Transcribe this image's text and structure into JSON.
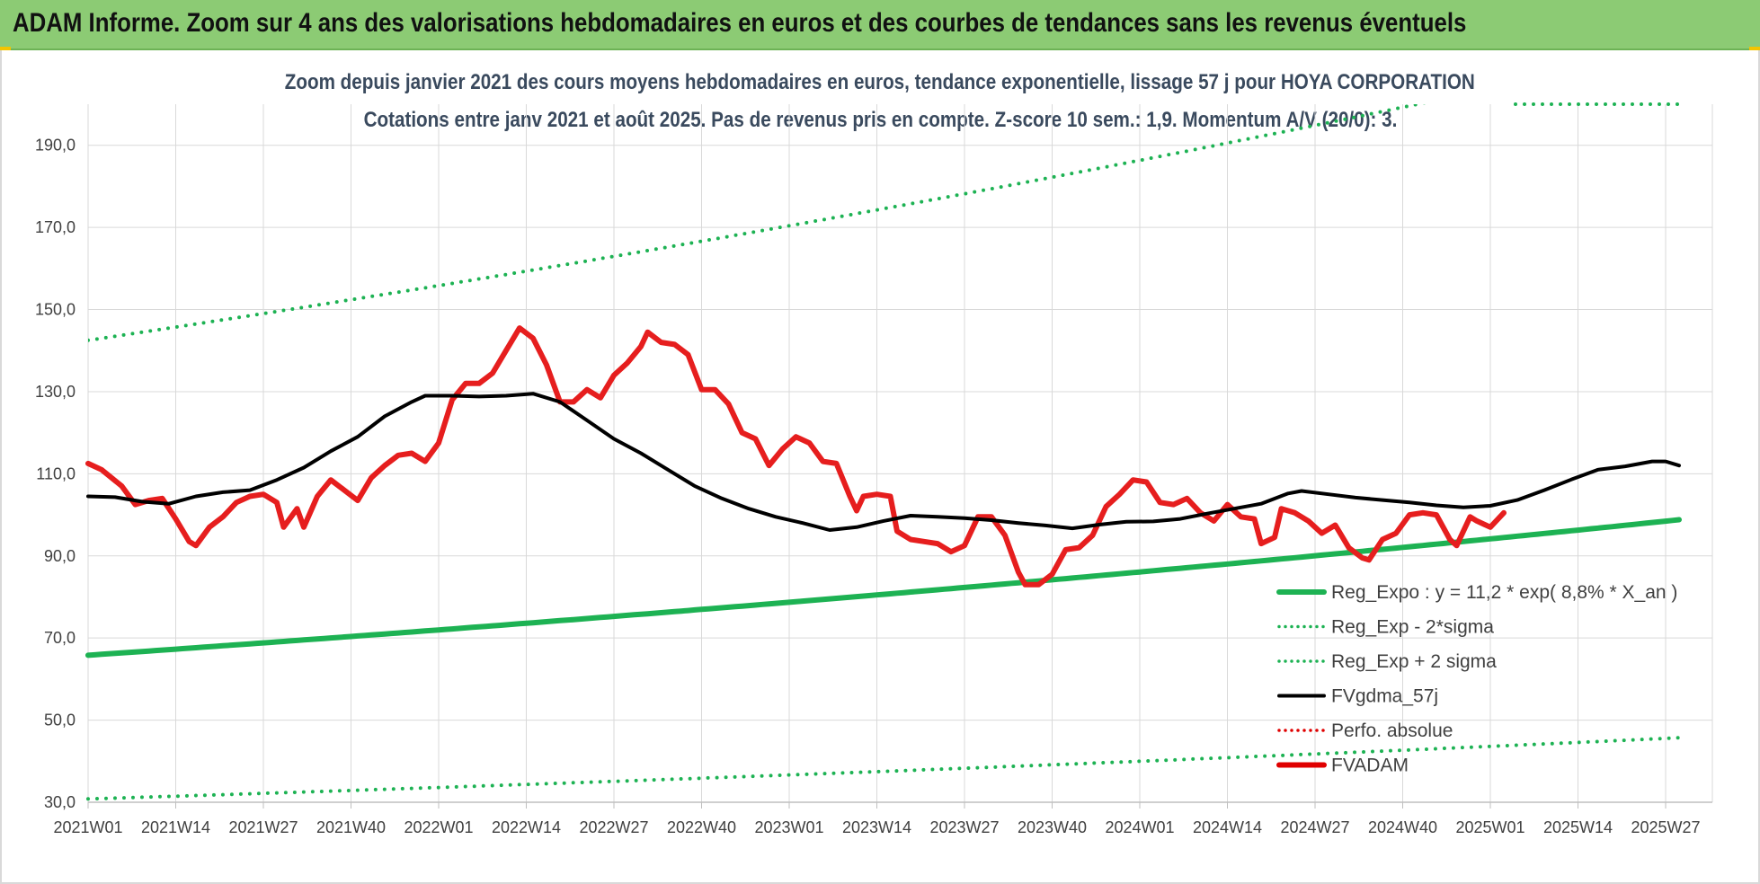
{
  "banner": {
    "title": "ADAM Informe. Zoom sur 4 ans des valorisations hebdomadaires en euros et des courbes de tendances sans les revenus éventuels"
  },
  "chart_data": {
    "type": "line",
    "title": "Zoom depuis janvier 2021 des cours moyens hebdomadaires en euros, tendance exponentielle, lissage 57 j pour HOYA CORPORATION",
    "subtitle": "Cotations entre janv 2021 et août 2025.  Pas de revenus pris en compte. Z-score 10 sem.: 1,9. Momentum A/V (20/0): 3.",
    "xlabel": "",
    "ylabel": "",
    "ylim": [
      30,
      200
    ],
    "yticks": [
      "30,0",
      "50,0",
      "70,0",
      "90,0",
      "110,0",
      "130,0",
      "150,0",
      "170,0",
      "190,0"
    ],
    "ytick_values": [
      30,
      50,
      70,
      90,
      110,
      130,
      150,
      170,
      190
    ],
    "xticks": [
      "2021W01",
      "2021W14",
      "2021W27",
      "2021W40",
      "2022W01",
      "2022W14",
      "2022W27",
      "2022W40",
      "2023W01",
      "2023W14",
      "2023W27",
      "2023W40",
      "2024W01",
      "2024W14",
      "2024W27",
      "2024W40",
      "2025W01",
      "2025W14",
      "2025W27"
    ],
    "week_range": [
      0,
      236
    ],
    "grid": true,
    "legend_position": "bottom-right",
    "legend": [
      {
        "name": "Reg_Expo : y = 11,2 * exp( 8,8% *  X_an )",
        "color": "#1db253",
        "style": "solid"
      },
      {
        "name": "Reg_Exp - 2*sigma",
        "color": "#1db253",
        "style": "dotted"
      },
      {
        "name": "Reg_Exp + 2 sigma",
        "color": "#1db253",
        "style": "dotted"
      },
      {
        "name": "FVgdma_57j",
        "color": "#000000",
        "style": "solid"
      },
      {
        "name": "Perfo. absolue",
        "color": "#e00000",
        "style": "dotted"
      },
      {
        "name": "FVADAM",
        "color": "#e00000",
        "style": "solid"
      }
    ],
    "series": [
      {
        "name": "Reg_Expo : y = 11,2 * exp( 8,8% *  X_an )",
        "type": "exponential",
        "start": [
          0,
          65.8
        ],
        "end": [
          236,
          98.8
        ]
      },
      {
        "name": "Reg_Exp - 2*sigma",
        "type": "exponential",
        "start": [
          0,
          30.8
        ],
        "end": [
          236,
          45.7
        ]
      },
      {
        "name": "Reg_Exp + 2 sigma",
        "type": "exponential",
        "start": [
          0,
          142.5
        ],
        "end": [
          236,
          213.8
        ]
      },
      {
        "name": "FVgdma_57j",
        "points": [
          [
            0,
            104.5
          ],
          [
            4,
            104.3
          ],
          [
            8,
            103.2
          ],
          [
            12,
            102.7
          ],
          [
            16,
            104.5
          ],
          [
            20,
            105.5
          ],
          [
            24,
            106.0
          ],
          [
            28,
            108.5
          ],
          [
            32,
            111.5
          ],
          [
            36,
            115.5
          ],
          [
            40,
            119.0
          ],
          [
            44,
            124.0
          ],
          [
            48,
            127.5
          ],
          [
            50,
            129.0
          ],
          [
            54,
            129.0
          ],
          [
            58,
            128.8
          ],
          [
            62,
            129.0
          ],
          [
            66,
            129.5
          ],
          [
            70,
            127.5
          ],
          [
            74,
            123.0
          ],
          [
            78,
            118.5
          ],
          [
            82,
            115.0
          ],
          [
            86,
            111.0
          ],
          [
            90,
            107.0
          ],
          [
            94,
            104.0
          ],
          [
            98,
            101.5
          ],
          [
            102,
            99.5
          ],
          [
            106,
            98.0
          ],
          [
            110,
            96.3
          ],
          [
            114,
            97.0
          ],
          [
            118,
            98.5
          ],
          [
            122,
            99.8
          ],
          [
            126,
            99.5
          ],
          [
            130,
            99.2
          ],
          [
            134,
            98.7
          ],
          [
            138,
            98.0
          ],
          [
            142,
            97.4
          ],
          [
            146,
            96.7
          ],
          [
            150,
            97.6
          ],
          [
            154,
            98.3
          ],
          [
            158,
            98.4
          ],
          [
            162,
            99.0
          ],
          [
            166,
            100.3
          ],
          [
            170,
            101.5
          ],
          [
            174,
            102.7
          ],
          [
            178,
            105.2
          ],
          [
            180,
            105.8
          ],
          [
            184,
            105.0
          ],
          [
            188,
            104.2
          ],
          [
            192,
            103.6
          ],
          [
            196,
            103.0
          ],
          [
            200,
            102.3
          ],
          [
            204,
            101.8
          ],
          [
            208,
            102.2
          ],
          [
            212,
            103.6
          ],
          [
            216,
            106.0
          ],
          [
            220,
            108.6
          ],
          [
            224,
            111.0
          ],
          [
            228,
            111.8
          ],
          [
            232,
            113.0
          ],
          [
            234,
            113.0
          ],
          [
            236,
            112.0
          ]
        ]
      },
      {
        "name": "FVADAM",
        "points": [
          [
            0,
            112.5
          ],
          [
            2,
            111.0
          ],
          [
            5,
            107.0
          ],
          [
            7,
            102.5
          ],
          [
            9,
            103.5
          ],
          [
            11,
            104.0
          ],
          [
            13,
            99.0
          ],
          [
            15,
            93.5
          ],
          [
            16,
            92.5
          ],
          [
            18,
            97.0
          ],
          [
            20,
            99.5
          ],
          [
            22,
            103.0
          ],
          [
            24,
            104.5
          ],
          [
            26,
            105.0
          ],
          [
            28,
            103.0
          ],
          [
            29,
            97.0
          ],
          [
            31,
            101.5
          ],
          [
            32,
            97.0
          ],
          [
            34,
            104.5
          ],
          [
            36,
            108.5
          ],
          [
            38,
            106.0
          ],
          [
            40,
            103.5
          ],
          [
            42,
            109.0
          ],
          [
            44,
            112.0
          ],
          [
            46,
            114.5
          ],
          [
            48,
            115.0
          ],
          [
            50,
            113.0
          ],
          [
            52,
            117.5
          ],
          [
            54,
            128.0
          ],
          [
            56,
            132.0
          ],
          [
            58,
            132.0
          ],
          [
            60,
            134.5
          ],
          [
            62,
            140.0
          ],
          [
            64,
            145.5
          ],
          [
            66,
            143.0
          ],
          [
            68,
            136.5
          ],
          [
            70,
            127.5
          ],
          [
            72,
            127.5
          ],
          [
            74,
            130.5
          ],
          [
            76,
            128.5
          ],
          [
            78,
            134.0
          ],
          [
            80,
            137.0
          ],
          [
            82,
            141.0
          ],
          [
            83,
            144.5
          ],
          [
            85,
            142.0
          ],
          [
            87,
            141.5
          ],
          [
            89,
            139.0
          ],
          [
            91,
            130.5
          ],
          [
            93,
            130.5
          ],
          [
            95,
            127.0
          ],
          [
            97,
            120.0
          ],
          [
            99,
            118.5
          ],
          [
            101,
            112.0
          ],
          [
            103,
            116.0
          ],
          [
            105,
            119.0
          ],
          [
            107,
            117.5
          ],
          [
            109,
            113.0
          ],
          [
            111,
            112.5
          ],
          [
            113,
            104.5
          ],
          [
            114,
            101.0
          ],
          [
            115,
            104.5
          ],
          [
            117,
            105.0
          ],
          [
            119,
            104.5
          ],
          [
            120,
            96.0
          ],
          [
            122,
            94.0
          ],
          [
            124,
            93.5
          ],
          [
            126,
            93.0
          ],
          [
            128,
            91.0
          ],
          [
            130,
            92.5
          ],
          [
            132,
            99.5
          ],
          [
            134,
            99.5
          ],
          [
            136,
            95.0
          ],
          [
            138,
            86.0
          ],
          [
            139,
            83.0
          ],
          [
            141,
            83.0
          ],
          [
            143,
            85.5
          ],
          [
            145,
            91.5
          ],
          [
            147,
            92.0
          ],
          [
            149,
            95.0
          ],
          [
            151,
            102.0
          ],
          [
            153,
            105.0
          ],
          [
            155,
            108.5
          ],
          [
            157,
            108.0
          ],
          [
            159,
            103.0
          ],
          [
            161,
            102.5
          ],
          [
            163,
            104.0
          ],
          [
            165,
            100.5
          ],
          [
            167,
            98.5
          ],
          [
            169,
            102.5
          ],
          [
            171,
            99.5
          ],
          [
            173,
            99.0
          ],
          [
            174,
            93.0
          ],
          [
            176,
            94.5
          ],
          [
            177,
            101.5
          ],
          [
            179,
            100.5
          ],
          [
            181,
            98.5
          ],
          [
            183,
            95.5
          ],
          [
            185,
            97.5
          ],
          [
            187,
            92.0
          ],
          [
            189,
            89.5
          ],
          [
            190,
            89.0
          ],
          [
            192,
            94.0
          ],
          [
            194,
            95.5
          ],
          [
            196,
            100.0
          ],
          [
            198,
            100.5
          ],
          [
            200,
            100.0
          ],
          [
            202,
            94.0
          ],
          [
            203,
            92.5
          ],
          [
            205,
            99.5
          ],
          [
            206,
            98.5
          ],
          [
            208,
            97.0
          ],
          [
            210,
            100.5
          ]
        ]
      }
    ]
  }
}
